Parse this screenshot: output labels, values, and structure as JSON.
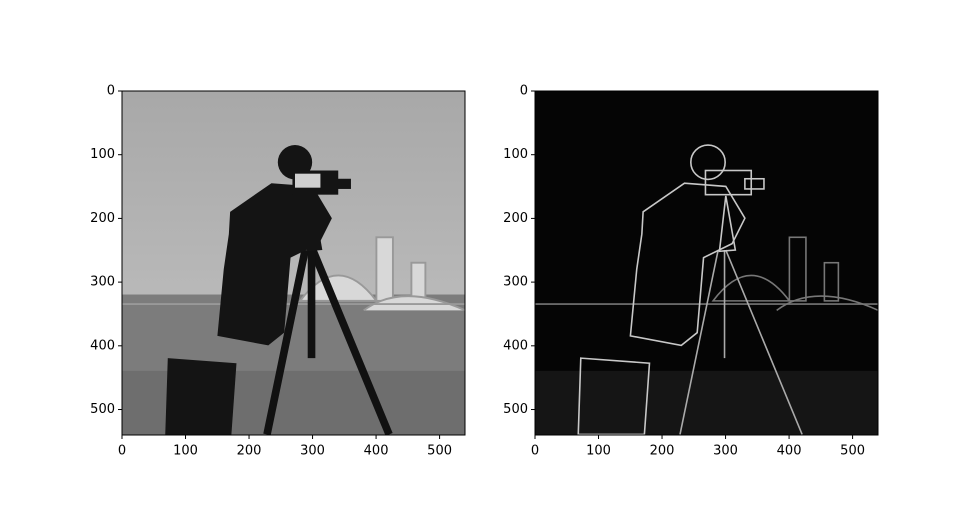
{
  "chart_data": [
    {
      "type": "image",
      "cmap": "gray",
      "xlim": [
        0,
        540
      ],
      "ylim": [
        540,
        0
      ],
      "xticks": [
        0,
        100,
        200,
        300,
        400,
        500
      ],
      "yticks": [
        0,
        100,
        200,
        300,
        400,
        500
      ]
    },
    {
      "type": "image",
      "cmap": "gray",
      "xlim": [
        0,
        540
      ],
      "ylim": [
        540,
        0
      ],
      "xticks": [
        0,
        100,
        200,
        300,
        400,
        500
      ],
      "yticks": [
        0,
        100,
        200,
        300,
        400,
        500
      ]
    }
  ]
}
